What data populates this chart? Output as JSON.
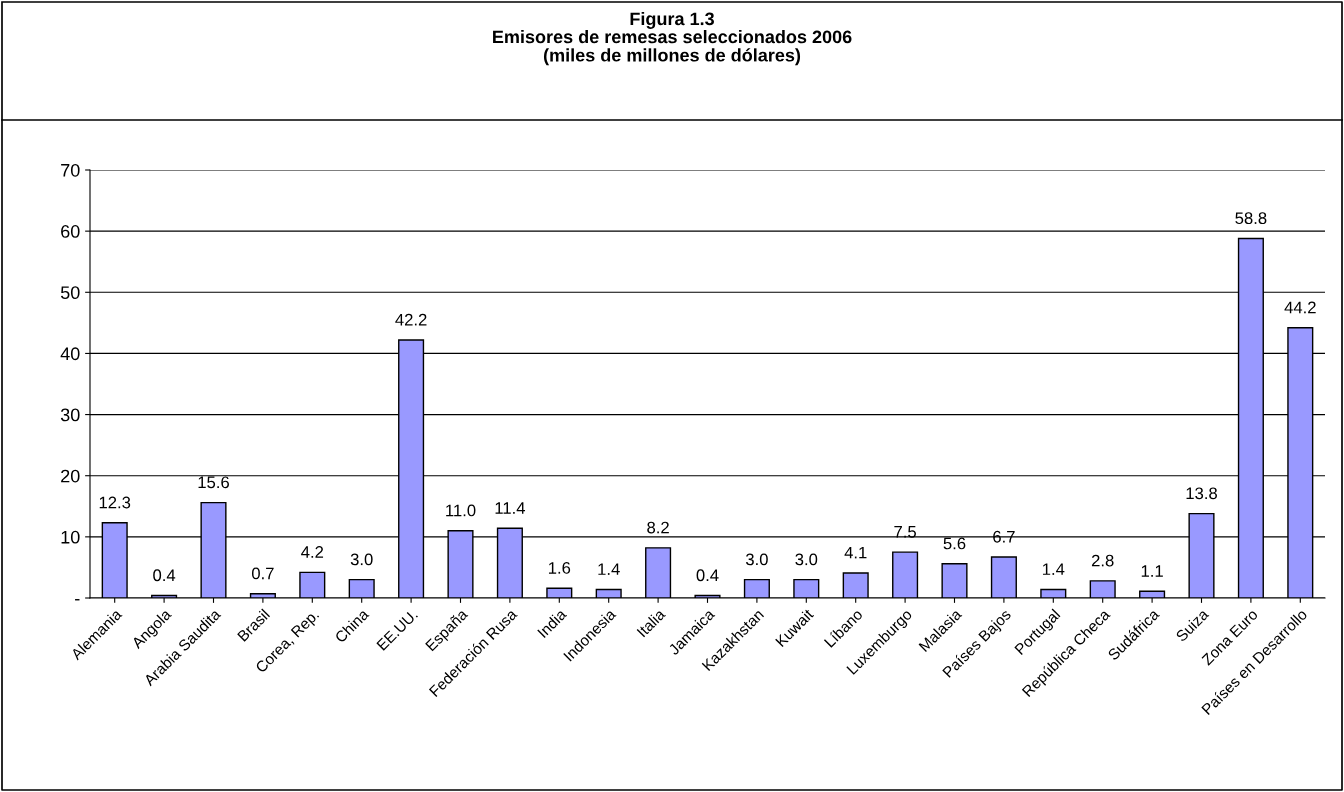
{
  "chart_data": {
    "type": "bar",
    "title": "Figura 1.3",
    "subtitle": "Emisores de remesas seleccionados 2006\n(miles de millones de dólares)",
    "categories": [
      "Alemania",
      "Angola",
      "Arabia Saudita",
      "Brasil",
      "Corea, Rep.",
      "China",
      "EE.UU.",
      "España",
      "Federación Rusa",
      "India",
      "Indonesia",
      "Italia",
      "Jamaica",
      "Kazakhstan",
      "Kuwait",
      "Líbano",
      "Luxemburgo",
      "Malasia",
      "Países Bajos",
      "Portugal",
      "República Checa",
      "Sudáfrica",
      "Suiza",
      "Zona Euro",
      "Países en Desarrollo"
    ],
    "values": [
      12.3,
      0.4,
      15.6,
      0.7,
      4.2,
      3.0,
      42.2,
      11.0,
      11.4,
      1.6,
      1.4,
      8.2,
      0.4,
      3.0,
      3.0,
      4.1,
      7.5,
      5.6,
      6.7,
      1.4,
      2.8,
      1.1,
      13.8,
      58.8,
      44.2
    ],
    "value_labels": [
      "12.3",
      "0.4",
      "15.6",
      "0.7",
      "4.2",
      "3.0",
      "42.2",
      "11.0",
      "11.4",
      "1.6",
      "1.4",
      "8.2",
      "0.4",
      "3.0",
      "3.0",
      "4.1",
      "7.5",
      "5.6",
      "6.7",
      "1.4",
      "2.8",
      "1.1",
      "13.8",
      "58.8",
      "44.2"
    ],
    "color": "#9999ff",
    "ylim": [
      0,
      70
    ],
    "yticks": [
      {
        "value": 0,
        "label": "-"
      },
      10,
      20,
      30,
      40,
      50,
      60,
      70
    ],
    "grid": "y",
    "legend": false
  }
}
